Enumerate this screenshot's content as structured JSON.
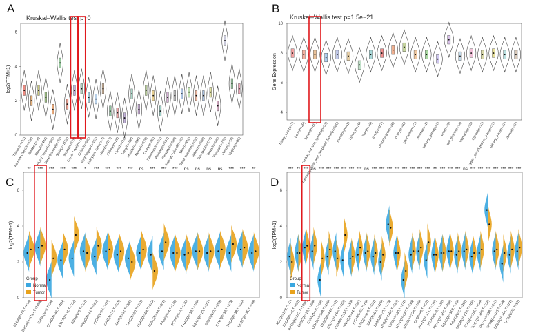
{
  "figure": {
    "background": "#ffffff"
  },
  "chart_data": [
    {
      "id": "A",
      "panel_label": "A",
      "type": "violin",
      "title": "Kruskal–Wallis test p=0",
      "ylabel": "log2(TPM+1)",
      "ylim": [
        0,
        6.5
      ],
      "yticks": [
        "0",
        "2",
        "4",
        "6"
      ],
      "highlight_categories": [
        "Breast(n=179)",
        "Cervix Uteri(n=10)"
      ],
      "highlight_color": "#e0191d",
      "categories": [
        "Tissue(n=115)",
        "Adrenal Gland(n=159)",
        "Bladder(n=9)",
        "Blood(n=444)",
        "Blood Vessel(n=606)",
        "Bone Marrow(n=70)",
        "Brain(n=1152)",
        "Breast(n=179)",
        "Cervix Uteri(n=10)",
        "Colon(n=308)",
        "Esophagus(n=653)",
        "Fallopian Tube(n=7)",
        "Heart(n=377)",
        "Kidney(n=28)",
        "Liver(n=110)",
        "Lung(n=288)",
        "Muscle(n=396)",
        "Nerve(n=278)",
        "Ovary(n=88)",
        "Pancreas(n=167)",
        "Pituitary(n=107)",
        "Prostate(n=100)",
        "Salivary Gland(n=55)",
        "Skin(n=812)",
        "Small Intestine(n=92)",
        "Spleen(n=100)",
        "Stomach(n=174)",
        "Testis(n=165)",
        "Thyroid(n=279)",
        "Uterus(n=78)",
        "Vagina(n=85)"
      ],
      "medians": [
        2.6,
        2.0,
        2.6,
        2.2,
        1.5,
        4.2,
        1.8,
        2.6,
        2.7,
        2.2,
        2.1,
        2.7,
        1.4,
        1.3,
        1.0,
        2.4,
        1.5,
        2.6,
        2.3,
        1.4,
        2.2,
        2.3,
        2.4,
        2.5,
        2.3,
        2.3,
        2.5,
        1.7,
        5.5,
        3.0,
        2.7
      ],
      "colors": [
        "#f08c82",
        "#e6b07a",
        "#c8c87a",
        "#a8d08a",
        "#e8a878",
        "#9ac8a0",
        "#f0a090",
        "#c0b0e0",
        "#b0d0c0",
        "#a0c8d8",
        "#b8d0e8",
        "#e0c0a0",
        "#90c8a0",
        "#f0a0a0",
        "#c0b0d8",
        "#a8d8c8",
        "#d0b0e0",
        "#c0d8a0",
        "#e8d090",
        "#a0d0c8",
        "#d8b0d8",
        "#c8c8c8",
        "#b0c8e8",
        "#c0e0b0",
        "#f0b8a0",
        "#a8c0e0",
        "#e0e0a0",
        "#d0a8c0",
        "#c8c8d8",
        "#a0d8a8",
        "#f0a8b8"
      ],
      "x_note": "Tissue categories"
    },
    {
      "id": "B",
      "panel_label": "B",
      "type": "violin",
      "title": "Kruskal–Wallis test p=1.5e−21",
      "ylabel": "Gene Expression",
      "ylim": [
        3.5,
        10
      ],
      "yticks": [
        "4",
        "6",
        "8",
        "10"
      ],
      "highlight_categories": [
        "breast(n=60)"
      ],
      "highlight_color": "#e0191d",
      "categories": [
        "biliary_tract(n=7)",
        "bone(n=29)",
        "breast(n=60)",
        "central_nervous_system(n=53)",
        "haematopoietic_and_lymphoid_tissue(n=180)",
        "intestine(n=41)",
        "kidney(n=36)",
        "liver(n=18)",
        "lung(n=167)",
        "oesophagus(n=26)",
        "ovary(n=40)",
        "pancreas(n=32)",
        "pleura(n=11)",
        "salivary_gland(n=2)",
        "skin(n=30)",
        "soft_tissue(n=14)",
        "stomach(n=30)",
        "thyroid(n=12)",
        "upper_aerodigestive_tract(n=32)",
        "urinary_tract(n=27)",
        "uterus(n=27)"
      ],
      "medians": [
        8.0,
        7.9,
        7.9,
        7.7,
        7.9,
        7.8,
        7.2,
        7.9,
        8.0,
        8.2,
        8.4,
        7.9,
        7.9,
        7.6,
        8.9,
        7.8,
        8.0,
        7.9,
        8.0,
        7.9,
        7.9
      ],
      "colors": [
        "#f4a3a3",
        "#f4b0a0",
        "#e8c098",
        "#b0d0f0",
        "#c0c8e8",
        "#e8d0a8",
        "#c0e0c8",
        "#a8d8d8",
        "#f08c8c",
        "#f0b090",
        "#c8d8a0",
        "#f0c8a0",
        "#a8d8a0",
        "#d0c8f0",
        "#d8c0e8",
        "#c0d8e8",
        "#f0c0d8",
        "#d8d8a8",
        "#e8e098",
        "#b8e0e0",
        "#d8c8b8"
      ],
      "x_note": "CCLE cell lines"
    },
    {
      "id": "C",
      "panel_label": "C",
      "type": "split-violin",
      "ylabel": "log2(TPM+1)",
      "ylim": [
        0,
        7
      ],
      "yticks": [
        "0",
        "2",
        "4",
        "6"
      ],
      "legend_title": "Group",
      "legend": [
        {
          "name": "Normal",
          "color": "#3aa7e0"
        },
        {
          "name": "Tumor",
          "color": "#e8a21b"
        }
      ],
      "highlight_categories": [
        "BRCA.N=1113,T=1098"
      ],
      "highlight_color": "#e0191d",
      "categories": [
        "BLCA(N=19,T=414)",
        "BRCA(N=1113,T=1098)",
        "CHOL(N=9,T=36)",
        "COAD(N=41,T=459)",
        "ESCA(N=11,T=162)",
        "GBM(N=5,T=167)",
        "HNSC(N=44,T=502)",
        "KICH(N=24,T=65)",
        "KIRC(N=72,T=531)",
        "KIRP(N=32,T=289)",
        "LIHC(N=50,T=371)",
        "LUAD(N=59,T=513)",
        "LUSC(N=49,T=501)",
        "PAAD(N=4,T=178)",
        "PCPG(N=3,T=179)",
        "PRAD(N=52,T=499)",
        "READ(N=10,T=167)",
        "SARC(N=2,T=259)",
        "STAD(N=32,T=375)",
        "THCA(N=58,T=510)",
        "UCEC(N=35,T=544)"
      ],
      "significance": [
        "**",
        "***",
        "***",
        "***",
        "***",
        "*",
        "***",
        "***",
        "***",
        "***",
        "ns",
        "***",
        "***",
        "***",
        "ns",
        "ns",
        "ns",
        "ns",
        "***",
        "***",
        "**"
      ],
      "normal_medians": [
        2.5,
        2.8,
        1.0,
        2.1,
        2.2,
        2.6,
        2.3,
        2.6,
        2.4,
        2.2,
        2.5,
        2.4,
        2.6,
        2.5,
        2.4,
        2.6,
        2.5,
        2.6,
        2.5,
        2.7,
        2.5
      ],
      "tumor_medians": [
        2.7,
        2.9,
        2.2,
        2.7,
        3.5,
        2.5,
        2.9,
        2.7,
        2.6,
        2.0,
        2.7,
        1.5,
        3.1,
        2.5,
        2.5,
        2.6,
        2.6,
        2.7,
        3.0,
        2.8,
        2.6
      ]
    },
    {
      "id": "D",
      "panel_label": "D",
      "type": "split-violin",
      "ylabel": "log2(TPM+1)",
      "ylim": [
        0,
        7
      ],
      "yticks": [
        "0",
        "2",
        "4",
        "6"
      ],
      "legend_title": "Group",
      "legend": [
        {
          "name": "Normal",
          "color": "#3aa7e0"
        },
        {
          "name": "Tumor",
          "color": "#e8a21b"
        }
      ],
      "highlight_categories": [
        "BRCA(N=292,T=1099)"
      ],
      "highlight_color": "#e0191d",
      "categories": [
        "ACC(N=128,T=77)",
        "BLCA(N=21,T=407)",
        "BRCA(N=292,T=1099)",
        "CESC(N=13,T=306)",
        "CHOL(N=9,T=36)",
        "COAD(N=349,T=290)",
        "DLBC(N=444,T=47)",
        "ESCA(N=666,T=182)",
        "GBM(N=1157,T=153)",
        "HNSC(N=44,T=520)",
        "KICH(N=53,T=66)",
        "KIRC(N=100,T=531)",
        "KIRP(N=60,T=289)",
        "LAML(N=70,T=173)",
        "LGG(N=1152,T=523)",
        "LIHC(N=160,T=371)",
        "LUAD(N=347,T=515)",
        "LUSC(N=338,T=498)",
        "OV(N=88,T=427)",
        "PAAD(N=171,T=179)",
        "PCPG(N=3,T=182)",
        "PRAD(N=152,T=496)",
        "READ(N=318,T=93)",
        "SARC(N=2,T=262)",
        "SKCM(N=813,T=469)",
        "STAD(N=211,T=414)",
        "TGCT(N=165,T=154)",
        "THCA(N=338,T=512)",
        "THYM(N=446,T=118)",
        "UCEC(N=101,T=181)",
        "UCS(N=78,T=57)"
      ],
      "significance": [
        "***",
        "**",
        "***",
        "ns",
        "***",
        "***",
        "***",
        "***",
        "***",
        "***",
        "ns",
        "***",
        "***",
        "***",
        "***",
        "***",
        "***",
        "***",
        "***",
        "**",
        "***",
        "***",
        "***",
        "ns",
        "***",
        "***",
        "***",
        "***",
        "***",
        "***",
        "***"
      ],
      "normal_medians": [
        2.3,
        2.5,
        2.8,
        2.6,
        1.0,
        2.3,
        2.6,
        2.1,
        2.2,
        2.4,
        2.5,
        2.3,
        2.0,
        4.1,
        2.5,
        1.0,
        2.4,
        2.6,
        2.1,
        2.4,
        2.5,
        2.6,
        2.4,
        2.6,
        2.3,
        2.5,
        4.9,
        2.6,
        1.9,
        2.4,
        2.6
      ],
      "tumor_medians": [
        2.0,
        2.5,
        2.9,
        2.9,
        2.2,
        2.7,
        2.2,
        3.5,
        2.3,
        2.8,
        2.6,
        2.5,
        2.4,
        3.9,
        2.5,
        1.5,
        2.6,
        2.8,
        3.1,
        2.4,
        2.5,
        2.6,
        2.6,
        2.7,
        2.5,
        2.7,
        4.1,
        2.7,
        2.5,
        2.7,
        2.8
      ]
    }
  ]
}
